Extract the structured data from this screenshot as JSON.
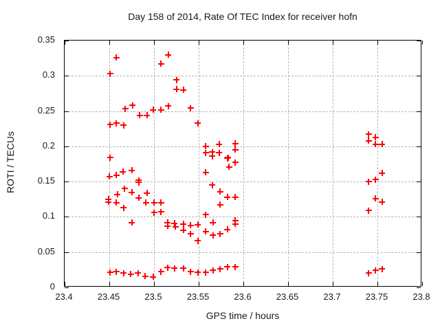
{
  "chart_data": {
    "type": "scatter",
    "title": "Day 158 of 2014, Rate Of TEC Index for receiver hofn",
    "xlabel": "GPS time / hours",
    "ylabel": "ROTI / TECUs",
    "xlim": [
      23.4,
      23.8
    ],
    "ylim": [
      0,
      0.35
    ],
    "xticks": [
      23.4,
      23.45,
      23.5,
      23.55,
      23.6,
      23.65,
      23.7,
      23.75,
      23.8
    ],
    "xtick_labels": [
      "23.4",
      "23.45",
      "23.5",
      "23.55",
      "23.6",
      "23.65",
      "23.7",
      "23.75",
      "23.8"
    ],
    "yticks": [
      0,
      0.05,
      0.1,
      0.15,
      0.2,
      0.25,
      0.3,
      0.35
    ],
    "ytick_labels": [
      "0",
      "0.05",
      "0.1",
      "0.15",
      "0.2",
      "0.25",
      "0.3",
      "0.35"
    ],
    "grid": true,
    "legend": false,
    "marker": "plus",
    "marker_color": "#ff0000",
    "grid_color": "#b4b4b4",
    "points": [
      [
        23.451,
        0.303
      ],
      [
        23.458,
        0.326
      ],
      [
        23.508,
        0.317
      ],
      [
        23.516,
        0.33
      ],
      [
        23.525,
        0.294
      ],
      [
        23.525,
        0.281
      ],
      [
        23.533,
        0.28
      ],
      [
        23.468,
        0.253
      ],
      [
        23.476,
        0.258
      ],
      [
        23.484,
        0.244
      ],
      [
        23.492,
        0.244
      ],
      [
        23.499,
        0.252
      ],
      [
        23.508,
        0.252
      ],
      [
        23.516,
        0.257
      ],
      [
        23.541,
        0.254
      ],
      [
        23.549,
        0.233
      ],
      [
        23.451,
        0.231
      ],
      [
        23.458,
        0.233
      ],
      [
        23.466,
        0.23
      ],
      [
        23.451,
        0.184
      ],
      [
        23.45,
        0.157
      ],
      [
        23.458,
        0.159
      ],
      [
        23.465,
        0.164
      ],
      [
        23.475,
        0.166
      ],
      [
        23.483,
        0.152
      ],
      [
        23.483,
        0.149
      ],
      [
        23.467,
        0.14
      ],
      [
        23.475,
        0.135
      ],
      [
        23.459,
        0.132
      ],
      [
        23.483,
        0.127
      ],
      [
        23.492,
        0.134
      ],
      [
        23.449,
        0.125
      ],
      [
        23.449,
        0.121
      ],
      [
        23.458,
        0.12
      ],
      [
        23.466,
        0.113
      ],
      [
        23.491,
        0.12
      ],
      [
        23.5,
        0.12
      ],
      [
        23.508,
        0.12
      ],
      [
        23.5,
        0.106
      ],
      [
        23.508,
        0.107
      ],
      [
        23.475,
        0.092
      ],
      [
        23.515,
        0.092
      ],
      [
        23.523,
        0.091
      ],
      [
        23.515,
        0.087
      ],
      [
        23.524,
        0.086
      ],
      [
        23.533,
        0.09
      ],
      [
        23.541,
        0.088
      ],
      [
        23.549,
        0.089
      ],
      [
        23.533,
        0.081
      ],
      [
        23.541,
        0.076
      ],
      [
        23.549,
        0.066
      ],
      [
        23.558,
        0.079
      ],
      [
        23.566,
        0.074
      ],
      [
        23.574,
        0.076
      ],
      [
        23.582,
        0.082
      ],
      [
        23.591,
        0.095
      ],
      [
        23.591,
        0.09
      ],
      [
        23.558,
        0.2
      ],
      [
        23.558,
        0.191
      ],
      [
        23.565,
        0.192
      ],
      [
        23.565,
        0.186
      ],
      [
        23.573,
        0.203
      ],
      [
        23.573,
        0.191
      ],
      [
        23.582,
        0.183
      ],
      [
        23.583,
        0.184
      ],
      [
        23.584,
        0.171
      ],
      [
        23.591,
        0.204
      ],
      [
        23.591,
        0.195
      ],
      [
        23.591,
        0.177
      ],
      [
        23.558,
        0.163
      ],
      [
        23.565,
        0.145
      ],
      [
        23.574,
        0.136
      ],
      [
        23.582,
        0.128
      ],
      [
        23.591,
        0.128
      ],
      [
        23.574,
        0.117
      ],
      [
        23.558,
        0.103
      ],
      [
        23.566,
        0.092
      ],
      [
        23.451,
        0.021
      ],
      [
        23.458,
        0.022
      ],
      [
        23.466,
        0.02
      ],
      [
        23.474,
        0.019
      ],
      [
        23.482,
        0.02
      ],
      [
        23.49,
        0.016
      ],
      [
        23.499,
        0.015
      ],
      [
        23.508,
        0.022
      ],
      [
        23.515,
        0.028
      ],
      [
        23.523,
        0.027
      ],
      [
        23.533,
        0.027
      ],
      [
        23.541,
        0.022
      ],
      [
        23.549,
        0.021
      ],
      [
        23.558,
        0.021
      ],
      [
        23.566,
        0.024
      ],
      [
        23.574,
        0.026
      ],
      [
        23.582,
        0.029
      ],
      [
        23.591,
        0.029
      ],
      [
        23.74,
        0.217
      ],
      [
        23.748,
        0.213
      ],
      [
        23.74,
        0.208
      ],
      [
        23.748,
        0.203
      ],
      [
        23.755,
        0.203
      ],
      [
        23.755,
        0.162
      ],
      [
        23.748,
        0.153
      ],
      [
        23.74,
        0.15
      ],
      [
        23.748,
        0.126
      ],
      [
        23.755,
        0.121
      ],
      [
        23.74,
        0.109
      ],
      [
        23.74,
        0.02
      ],
      [
        23.748,
        0.024
      ],
      [
        23.755,
        0.026
      ]
    ]
  }
}
